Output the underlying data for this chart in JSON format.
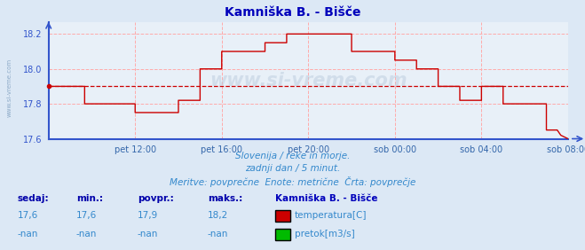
{
  "title": "Kamniška B. - Bišče",
  "bg_color": "#dce8f5",
  "plot_bg_color": "#e8f0f8",
  "title_color": "#0000bb",
  "axis_color": "#3355cc",
  "grid_color": "#ffaaaa",
  "line_color": "#cc0000",
  "avg_value": 17.9,
  "ylim": [
    17.6,
    18.27
  ],
  "yticks": [
    17.6,
    17.8,
    18.0,
    18.2
  ],
  "xlabel_color": "#3366aa",
  "xtick_labels": [
    "pet 12:00",
    "pet 16:00",
    "pet 20:00",
    "sob 00:00",
    "sob 04:00",
    "sob 08:00"
  ],
  "subtitle1": "Slovenija / reke in morje.",
  "subtitle2": "zadnji dan / 5 minut.",
  "subtitle3": "Meritve: povprečne  Enote: metrične  Črta: povprečje",
  "subtitle_color": "#3388cc",
  "legend_title": "Kamniška B. - Bišče",
  "legend_temp_label": "temperatura[C]",
  "legend_pretok_label": "pretok[m3/s]",
  "legend_temp_color": "#cc0000",
  "legend_pretok_color": "#00bb00",
  "stat_labels": [
    "sedaj:",
    "min.:",
    "povpr.:",
    "maks.:"
  ],
  "stat_values_temp": [
    "17,6",
    "17,6",
    "17,9",
    "18,2"
  ],
  "stat_values_pretok": [
    "-nan",
    "-nan",
    "-nan",
    "-nan"
  ],
  "stat_color": "#3388cc",
  "stat_label_color": "#0000aa",
  "x_tick_positions": [
    48,
    96,
    144,
    192,
    240,
    288
  ],
  "x_total": 288,
  "watermark": "www.si-vreme.com",
  "temp_data": [
    [
      0,
      17.9
    ],
    [
      20,
      17.9
    ],
    [
      20,
      17.8
    ],
    [
      48,
      17.8
    ],
    [
      48,
      17.75
    ],
    [
      72,
      17.75
    ],
    [
      72,
      17.82
    ],
    [
      84,
      17.82
    ],
    [
      84,
      18.0
    ],
    [
      96,
      18.0
    ],
    [
      96,
      18.1
    ],
    [
      120,
      18.1
    ],
    [
      120,
      18.15
    ],
    [
      132,
      18.15
    ],
    [
      132,
      18.2
    ],
    [
      168,
      18.2
    ],
    [
      168,
      18.1
    ],
    [
      192,
      18.1
    ],
    [
      192,
      18.05
    ],
    [
      204,
      18.05
    ],
    [
      204,
      18.0
    ],
    [
      216,
      18.0
    ],
    [
      216,
      17.9
    ],
    [
      228,
      17.9
    ],
    [
      228,
      17.82
    ],
    [
      240,
      17.82
    ],
    [
      240,
      17.9
    ],
    [
      252,
      17.9
    ],
    [
      252,
      17.8
    ],
    [
      264,
      17.8
    ],
    [
      264,
      17.8
    ],
    [
      276,
      17.8
    ],
    [
      276,
      17.65
    ],
    [
      282,
      17.65
    ],
    [
      284,
      17.62
    ],
    [
      288,
      17.6
    ]
  ]
}
